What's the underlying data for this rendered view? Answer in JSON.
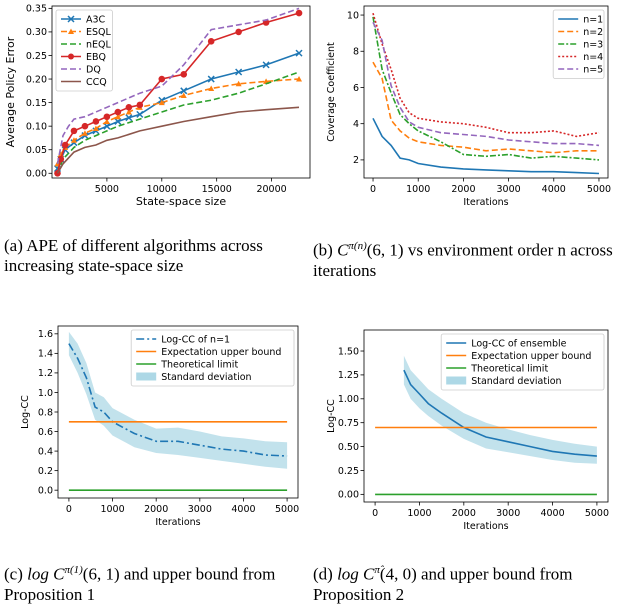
{
  "captions": [
    {
      "label": "(a)",
      "text": "APE of different algorithms across increasing state-space size"
    },
    {
      "label": "(b)",
      "math": "C",
      "sup": "π(n)",
      "args": "(6, 1)",
      "text": "vs environment order n across iterations"
    },
    {
      "label": "(c)",
      "math": "log C",
      "sup": "π(1)",
      "args": "(6, 1)",
      "text": "and upper bound from Proposition 1"
    },
    {
      "label": "(d)",
      "math": "log C",
      "sup": "π̂",
      "args": "(4, 0)",
      "text": "and upper bound from Proposition 2"
    }
  ],
  "chart_data": [
    {
      "id": "a",
      "type": "line",
      "title": "",
      "xlabel": "State-space size",
      "ylabel": "Average Policy Error",
      "xlim": [
        0,
        23500
      ],
      "ylim": [
        -0.01,
        0.355
      ],
      "xticks": [
        5000,
        10000,
        15000,
        20000
      ],
      "yticks": [
        0.0,
        0.05,
        0.1,
        0.15,
        0.2,
        0.25,
        0.3,
        0.35
      ],
      "ytick_labels": [
        "0.00",
        "0.05",
        "0.10",
        "0.15",
        "0.20",
        "0.25",
        "0.30",
        "0.35"
      ],
      "grid": false,
      "legend_position": "top-left",
      "series": [
        {
          "name": "A3C",
          "color": "#1f77b4",
          "dash": "",
          "marker": "x",
          "x": [
            500,
            800,
            1200,
            2000,
            3000,
            4000,
            5000,
            6000,
            7000,
            8000,
            10000,
            12000,
            14500,
            17000,
            19500,
            22500
          ],
          "y": [
            0.01,
            0.03,
            0.05,
            0.065,
            0.08,
            0.09,
            0.1,
            0.11,
            0.118,
            0.125,
            0.155,
            0.175,
            0.2,
            0.215,
            0.23,
            0.255
          ]
        },
        {
          "name": "ESQL",
          "color": "#ff7f0e",
          "dash": "6,3",
          "marker": "triangle",
          "x": [
            500,
            800,
            1200,
            2000,
            3000,
            4000,
            5000,
            6000,
            7000,
            8000,
            10000,
            12000,
            14500,
            17000,
            19500,
            22500
          ],
          "y": [
            0.02,
            0.04,
            0.055,
            0.07,
            0.085,
            0.095,
            0.11,
            0.12,
            0.13,
            0.14,
            0.15,
            0.165,
            0.18,
            0.19,
            0.195,
            0.2
          ]
        },
        {
          "name": "nEQL",
          "color": "#2ca02c",
          "dash": "6,3",
          "marker": "",
          "x": [
            500,
            1000,
            2000,
            3000,
            4000,
            5000,
            6000,
            8000,
            10000,
            12000,
            14500,
            17000,
            19500,
            22500
          ],
          "y": [
            0.0,
            0.03,
            0.055,
            0.07,
            0.08,
            0.09,
            0.1,
            0.115,
            0.13,
            0.145,
            0.155,
            0.17,
            0.19,
            0.215
          ]
        },
        {
          "name": "EBQ",
          "color": "#d62728",
          "dash": "",
          "marker": "circle",
          "x": [
            500,
            800,
            1200,
            2000,
            3000,
            4000,
            5000,
            6000,
            7000,
            8000,
            10000,
            12000,
            14500,
            17000,
            19500,
            22500
          ],
          "y": [
            0.0,
            0.03,
            0.06,
            0.09,
            0.1,
            0.11,
            0.12,
            0.13,
            0.14,
            0.145,
            0.2,
            0.21,
            0.28,
            0.3,
            0.32,
            0.34
          ]
        },
        {
          "name": "DQ",
          "color": "#9467bd",
          "dash": "6,3",
          "marker": "",
          "x": [
            500,
            1000,
            1500,
            2000,
            3000,
            4000,
            5000,
            6000,
            8000,
            10000,
            12000,
            14500,
            17000,
            19500,
            22500
          ],
          "y": [
            0.02,
            0.08,
            0.1,
            0.115,
            0.12,
            0.13,
            0.14,
            0.15,
            0.17,
            0.185,
            0.23,
            0.305,
            0.315,
            0.325,
            0.35
          ]
        },
        {
          "name": "CCQ",
          "color": "#8c564b",
          "dash": "",
          "marker": "",
          "x": [
            500,
            1000,
            2000,
            3000,
            4000,
            5000,
            6000,
            8000,
            10000,
            12000,
            14500,
            17000,
            19500,
            22500
          ],
          "y": [
            0.0,
            0.02,
            0.045,
            0.055,
            0.06,
            0.07,
            0.075,
            0.09,
            0.1,
            0.11,
            0.12,
            0.13,
            0.135,
            0.14
          ]
        }
      ]
    },
    {
      "id": "b",
      "type": "line",
      "title": "",
      "xlabel": "Iterations",
      "ylabel": "Coverage Coefficient",
      "xlim": [
        -200,
        5200
      ],
      "ylim": [
        1,
        10.5
      ],
      "xticks": [
        0,
        1000,
        2000,
        3000,
        4000,
        5000
      ],
      "yticks": [
        2,
        4,
        6,
        8,
        10
      ],
      "grid": false,
      "legend_position": "top-right",
      "series": [
        {
          "name": "n=1",
          "color": "#1f77b4",
          "dash": "",
          "x": [
            0,
            200,
            400,
            600,
            800,
            1000,
            1500,
            2000,
            2500,
            3000,
            3500,
            4000,
            4500,
            5000
          ],
          "y": [
            4.3,
            3.3,
            2.8,
            2.1,
            2.0,
            1.8,
            1.6,
            1.5,
            1.45,
            1.4,
            1.35,
            1.35,
            1.3,
            1.25
          ]
        },
        {
          "name": "n=2",
          "color": "#ff7f0e",
          "dash": "6,3",
          "x": [
            0,
            200,
            400,
            600,
            800,
            1000,
            1500,
            2000,
            2500,
            3000,
            3500,
            4000,
            4500,
            5000
          ],
          "y": [
            7.4,
            6.5,
            4.2,
            3.6,
            3.2,
            3.0,
            2.8,
            2.7,
            2.5,
            2.6,
            2.5,
            2.4,
            2.5,
            2.5
          ]
        },
        {
          "name": "n=3",
          "color": "#2ca02c",
          "dash": "6,2,2,2",
          "x": [
            0,
            200,
            400,
            600,
            800,
            1000,
            1500,
            2000,
            2500,
            3000,
            3500,
            4000,
            4500,
            5000
          ],
          "y": [
            9.9,
            7.0,
            5.7,
            4.5,
            4.0,
            3.6,
            3.0,
            2.3,
            2.2,
            2.3,
            2.1,
            2.2,
            2.1,
            2.0
          ]
        },
        {
          "name": "n=4",
          "color": "#d62728",
          "dash": "2,2",
          "x": [
            0,
            200,
            400,
            600,
            800,
            1000,
            1500,
            2000,
            2500,
            3000,
            3500,
            4000,
            4500,
            5000
          ],
          "y": [
            10.1,
            8.4,
            7.0,
            5.4,
            4.6,
            4.3,
            4.1,
            4.0,
            3.8,
            3.5,
            3.5,
            3.6,
            3.3,
            3.5
          ]
        },
        {
          "name": "n=5",
          "color": "#9467bd",
          "dash": "6,3",
          "x": [
            0,
            200,
            400,
            600,
            800,
            1000,
            1500,
            2000,
            2500,
            3000,
            3500,
            4000,
            4500,
            5000
          ],
          "y": [
            9.6,
            8.6,
            6.1,
            4.9,
            4.1,
            3.8,
            3.5,
            3.4,
            3.3,
            3.1,
            3.0,
            2.9,
            2.9,
            2.8
          ]
        }
      ]
    },
    {
      "id": "c",
      "type": "line",
      "title": "",
      "xlabel": "Iterations",
      "ylabel": "Log-CC",
      "xlim": [
        -250,
        5250
      ],
      "ylim": [
        -0.08,
        1.68
      ],
      "xticks": [
        0,
        1000,
        2000,
        3000,
        4000,
        5000
      ],
      "yticks": [
        0.0,
        0.2,
        0.4,
        0.6,
        0.8,
        1.0,
        1.2,
        1.4,
        1.6
      ],
      "ytick_labels": [
        "0.0",
        "0.2",
        "0.4",
        "0.6",
        "0.8",
        "1.0",
        "1.2",
        "1.4",
        "1.6"
      ],
      "grid": false,
      "legend_position": "top-right",
      "series": [
        {
          "name": "Log-CC of n=1",
          "color": "#1f77b4",
          "dash": "8,3,2,3",
          "x": [
            0,
            200,
            400,
            600,
            800,
            1000,
            1500,
            2000,
            2500,
            3000,
            3500,
            4000,
            4500,
            5000
          ],
          "y": [
            1.5,
            1.35,
            1.15,
            0.85,
            0.8,
            0.7,
            0.58,
            0.5,
            0.5,
            0.46,
            0.42,
            0.4,
            0.36,
            0.35
          ]
        },
        {
          "name": "Expectation upper bound",
          "color": "#ff7f0e",
          "dash": "",
          "x": [
            0,
            5000
          ],
          "y": [
            0.7,
            0.7
          ]
        },
        {
          "name": "Theoretical limit",
          "color": "#2ca02c",
          "dash": "",
          "x": [
            0,
            5000
          ],
          "y": [
            0.0,
            0.0
          ]
        },
        {
          "name": "Standard deviation",
          "color": "#add8e6",
          "band": true,
          "x": [
            0,
            200,
            400,
            600,
            800,
            1000,
            1500,
            2000,
            2500,
            3000,
            3500,
            4000,
            4500,
            5000
          ],
          "lower": [
            1.38,
            1.2,
            0.98,
            0.72,
            0.66,
            0.56,
            0.44,
            0.38,
            0.36,
            0.33,
            0.3,
            0.27,
            0.24,
            0.22
          ],
          "upper": [
            1.62,
            1.5,
            1.3,
            1.0,
            0.95,
            0.84,
            0.72,
            0.63,
            0.64,
            0.6,
            0.55,
            0.53,
            0.5,
            0.49
          ]
        }
      ]
    },
    {
      "id": "d",
      "type": "line",
      "title": "",
      "xlabel": "Iterations",
      "ylabel": "Log-CC",
      "xlim": [
        -250,
        5250
      ],
      "ylim": [
        -0.08,
        1.72
      ],
      "xticks": [
        0,
        1000,
        2000,
        3000,
        4000,
        5000
      ],
      "yticks": [
        0.0,
        0.25,
        0.5,
        0.75,
        1.0,
        1.25,
        1.5
      ],
      "ytick_labels": [
        "0.00",
        "0.25",
        "0.50",
        "0.75",
        "1.00",
        "1.25",
        "1.50"
      ],
      "grid": false,
      "legend_position": "top-right",
      "series": [
        {
          "name": "Log-CC of ensemble",
          "color": "#1f77b4",
          "dash": "",
          "x": [
            650,
            800,
            1000,
            1200,
            1500,
            2000,
            2500,
            3000,
            3500,
            4000,
            4500,
            5000
          ],
          "y": [
            1.3,
            1.15,
            1.05,
            0.95,
            0.85,
            0.7,
            0.6,
            0.55,
            0.5,
            0.45,
            0.42,
            0.4
          ]
        },
        {
          "name": "Expectation upper bound",
          "color": "#ff7f0e",
          "dash": "",
          "x": [
            0,
            5000
          ],
          "y": [
            0.7,
            0.7
          ]
        },
        {
          "name": "Theoretical limit",
          "color": "#2ca02c",
          "dash": "",
          "x": [
            0,
            5000
          ],
          "y": [
            0.0,
            0.0
          ]
        },
        {
          "name": "Standard deviation",
          "color": "#add8e6",
          "band": true,
          "x": [
            650,
            800,
            1000,
            1200,
            1500,
            2000,
            2500,
            3000,
            3500,
            4000,
            4500,
            5000
          ],
          "lower": [
            1.15,
            1.0,
            0.9,
            0.82,
            0.72,
            0.58,
            0.48,
            0.44,
            0.4,
            0.36,
            0.33,
            0.32
          ],
          "upper": [
            1.45,
            1.3,
            1.2,
            1.1,
            1.0,
            0.85,
            0.75,
            0.68,
            0.62,
            0.57,
            0.53,
            0.5
          ]
        }
      ]
    }
  ]
}
